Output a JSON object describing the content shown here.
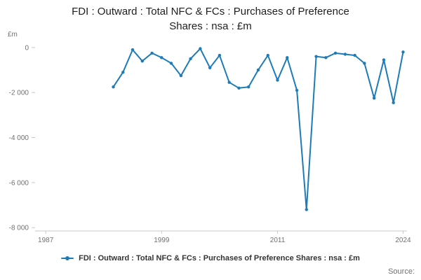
{
  "header": {
    "title_lines": [
      "FDI : Outward : Total NFC & FCs : Purchases of Preference",
      "Shares : nsa : £m"
    ]
  },
  "legend": {
    "label": "FDI : Outward : Total NFC & FCs : Purchases of Preference Shares : nsa : £m"
  },
  "footer": {
    "source": "Source:"
  },
  "chart_data": {
    "type": "line",
    "title": "FDI : Outward : Total NFC & FCs : Purchases of Preference Shares : nsa : £m",
    "xlabel": "",
    "ylabel": "£m",
    "line_color": "#1d7cb8",
    "axis_color": "#c8c8c8",
    "grid": false,
    "legend_position": "bottom",
    "x": [
      1994,
      1995,
      1996,
      1997,
      1998,
      1999,
      2000,
      2001,
      2002,
      2003,
      2004,
      2005,
      2006,
      2007,
      2008,
      2009,
      2010,
      2011,
      2012,
      2013,
      2014,
      2015,
      2016,
      2017,
      2018,
      2019,
      2020,
      2021,
      2022,
      2023,
      2024
    ],
    "values": [
      -1750,
      -1100,
      -100,
      -600,
      -250,
      -450,
      -700,
      -1250,
      -500,
      -50,
      -900,
      -350,
      -1550,
      -1800,
      -1750,
      -1000,
      -350,
      -1450,
      -450,
      -1900,
      -7200,
      -400,
      -450,
      -250,
      -300,
      -350,
      -700,
      -2250,
      -550,
      -2450,
      -200
    ],
    "x_ticks": [
      {
        "value": 1987,
        "label": "1987"
      },
      {
        "value": 1999,
        "label": "1999"
      },
      {
        "value": 2011,
        "label": "2011"
      },
      {
        "value": 2024,
        "label": "2024"
      }
    ],
    "y_ticks": [
      {
        "value": 0,
        "label": "0"
      },
      {
        "value": -2000,
        "label": "-2 000"
      },
      {
        "value": -4000,
        "label": "-4 000"
      },
      {
        "value": -6000,
        "label": "-6 000"
      },
      {
        "value": -8000,
        "label": "-8 000"
      }
    ],
    "xlim": [
      1985.9,
      2024.4
    ],
    "ylim": [
      -8150,
      400
    ]
  }
}
